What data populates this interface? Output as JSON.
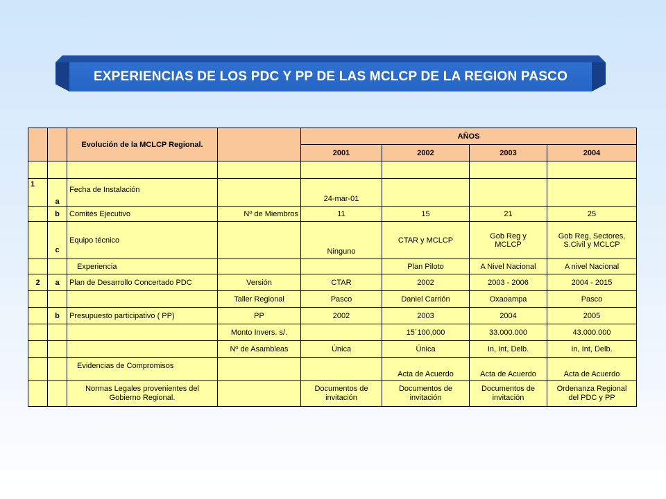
{
  "title": "EXPERIENCIAS DE LOS PDC Y PP DE LAS MCLCP DE LA REGION PASCO",
  "colors": {
    "header_fill": "#f9c79a",
    "body_fill": "#ffffa6",
    "banner": "#2566c4"
  },
  "table": {
    "header_label": "Evolución de la MCLCP Regional.",
    "years_label": "AÑOS",
    "years": [
      "2001",
      "2002",
      "2003",
      "2004"
    ],
    "rows": [
      {
        "num": "1",
        "letter": "a",
        "label": "Fecha de Instalación",
        "measure": "",
        "v": [
          "24-mar-01",
          "",
          "",
          ""
        ]
      },
      {
        "num": "",
        "letter": "b",
        "label": "Comités Ejecutivo",
        "measure": "Nº de Miembros",
        "v": [
          "11",
          "15",
          "21",
          "25"
        ]
      },
      {
        "num": "",
        "letter": "c",
        "label": "Equipo técnico",
        "measure": "",
        "v": [
          "Ninguno",
          "CTAR y MCLCP",
          "Gob Reg y MCLCP",
          "Gob Reg, Sectores, S.Civil y MCLCP"
        ]
      },
      {
        "num": "",
        "letter": "",
        "label": "Experiencia",
        "measure": "",
        "v": [
          "",
          "Plan Piloto",
          "A Nivel Nacional",
          "A nivel Nacional"
        ]
      },
      {
        "num": "2",
        "letter": "a",
        "label": "Plan de Desarrollo Concertado  PDC",
        "measure": "Versión",
        "v": [
          "CTAR",
          "2002",
          "2003 - 2006",
          "2004 - 2015"
        ]
      },
      {
        "num": "",
        "letter": "",
        "label": "",
        "measure": "Taller Regional",
        "v": [
          "Pasco",
          "Daniel Carrión",
          "Oxaoampa",
          "Pasco"
        ]
      },
      {
        "num": "",
        "letter": "b",
        "label": "Presupuesto participativo (  PP)",
        "measure": "PP",
        "v": [
          "2002",
          "2003",
          "2004",
          "2005"
        ]
      },
      {
        "num": "",
        "letter": "",
        "label": "",
        "measure": "Monto Invers. s/.",
        "v": [
          "",
          "15´100,000",
          "33.000.000",
          "43.000.000"
        ]
      },
      {
        "num": "",
        "letter": "",
        "label": "",
        "measure": "Nº de Asambleas",
        "v": [
          "Única",
          "Única",
          "In,  Int,  Delb.",
          "In,  Int,  Delb."
        ]
      },
      {
        "num": "",
        "letter": "",
        "label": "Evidencias de Compromisos",
        "measure": "",
        "v": [
          "",
          "Acta de Acuerdo",
          "Acta de Acuerdo",
          "Acta de Acuerdo"
        ]
      },
      {
        "num": "",
        "letter": "",
        "label": "Normas Legales provenientes del Gobierno Regional.",
        "measure": "",
        "v": [
          "Documentos de invitación",
          "Documentos de invitación",
          "Documentos    de invitación",
          "Ordenanza Regional del PDC y PP"
        ]
      }
    ]
  }
}
